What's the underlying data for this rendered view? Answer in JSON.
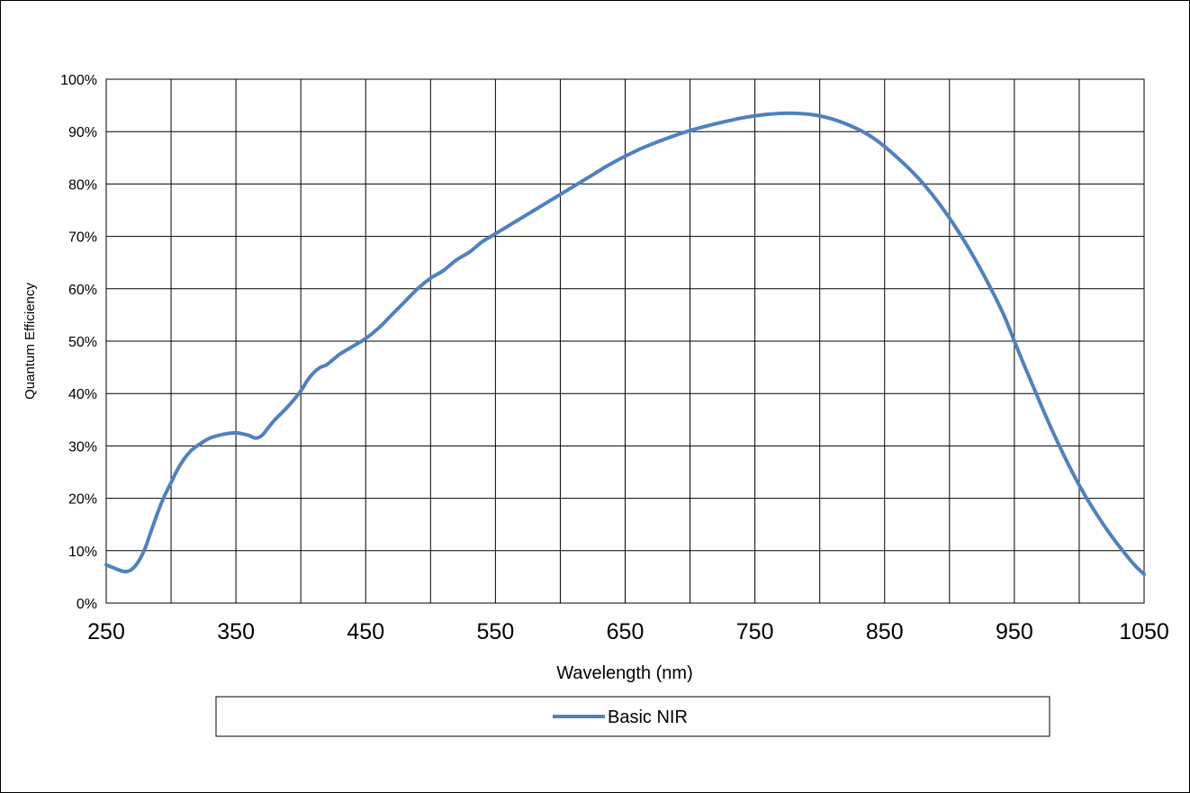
{
  "chart_data": {
    "type": "line",
    "xlabel": "Wavelength (nm)",
    "ylabel": "Quantum Efficiency",
    "xlim": [
      250,
      1050
    ],
    "ylim": [
      0,
      100
    ],
    "x_ticks": [
      "250",
      "350",
      "450",
      "550",
      "650",
      "750",
      "850",
      "950",
      "1050"
    ],
    "y_ticks": [
      "0%",
      "10%",
      "20%",
      "30%",
      "40%",
      "50%",
      "60%",
      "70%",
      "80%",
      "90%",
      "100%"
    ],
    "grid": true,
    "legend_position": "bottom",
    "color": "#4F81BD",
    "series": [
      {
        "name": "Basic NIR",
        "x": [
          250,
          255,
          260,
          265,
          270,
          275,
          280,
          285,
          290,
          295,
          300,
          305,
          310,
          315,
          320,
          325,
          330,
          340,
          350,
          360,
          365,
          370,
          375,
          380,
          390,
          400,
          405,
          410,
          415,
          420,
          430,
          440,
          450,
          460,
          470,
          480,
          490,
          500,
          510,
          520,
          530,
          540,
          550,
          560,
          570,
          580,
          590,
          600,
          620,
          640,
          660,
          680,
          700,
          720,
          740,
          760,
          780,
          800,
          820,
          840,
          860,
          880,
          900,
          920,
          940,
          950,
          960,
          980,
          1000,
          1020,
          1040,
          1050
        ],
        "y": [
          7.3,
          6.8,
          6.3,
          6.0,
          6.5,
          8.0,
          10.5,
          14.0,
          17.5,
          20.5,
          23.0,
          25.5,
          27.5,
          29.0,
          30.0,
          30.8,
          31.5,
          32.2,
          32.5,
          32.0,
          31.5,
          32.0,
          33.5,
          35.0,
          37.5,
          40.5,
          42.5,
          44.0,
          45.0,
          45.5,
          47.5,
          49.0,
          50.5,
          52.5,
          55.0,
          57.5,
          60.0,
          62.0,
          63.5,
          65.5,
          67.0,
          69.0,
          70.5,
          72.0,
          73.5,
          75.0,
          76.5,
          78.0,
          81.0,
          84.0,
          86.5,
          88.5,
          90.2,
          91.5,
          92.6,
          93.3,
          93.5,
          93.0,
          91.5,
          89.0,
          85.0,
          80.0,
          73.5,
          65.5,
          56.0,
          50.0,
          44.0,
          32.5,
          22.5,
          14.5,
          8.0,
          5.5
        ]
      }
    ]
  }
}
